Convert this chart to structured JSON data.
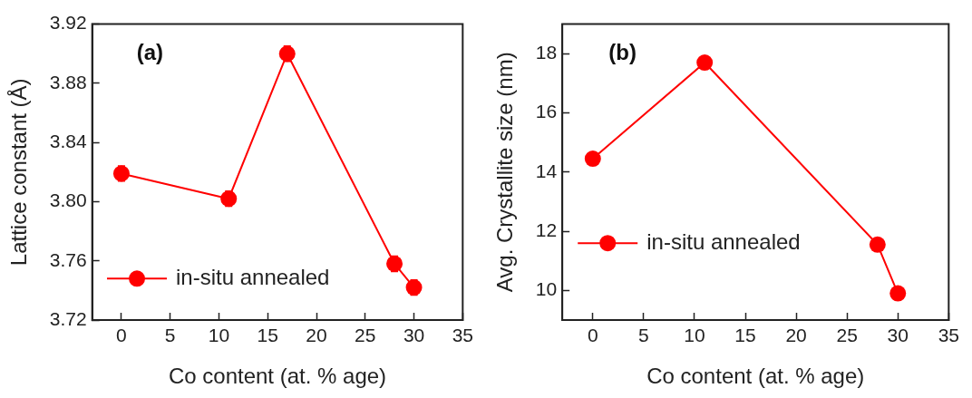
{
  "chart_data": [
    {
      "type": "line",
      "xlabel": "Co content (at. % age)",
      "ylabel": "Lattice constant (Å)",
      "annotations": [
        "(a)"
      ],
      "x": [
        0,
        11,
        17,
        28,
        30
      ],
      "series": [
        {
          "name": "in-situ annealed",
          "color": "#ff0000",
          "values": [
            3.819,
            3.802,
            3.9,
            3.758,
            3.742
          ],
          "errors": [
            0.005,
            0.005,
            0.005,
            0.005,
            0.005
          ]
        }
      ],
      "xlim": [
        -3,
        35
      ],
      "xticks": [
        0,
        5,
        10,
        15,
        20,
        25,
        30,
        35
      ],
      "ylim": [
        3.72,
        3.92
      ],
      "yticks": [
        {
          "value": 3.72,
          "label": "3.72"
        },
        {
          "value": 3.76,
          "label": "3.76"
        },
        {
          "value": 3.8,
          "label": "3.80"
        },
        {
          "value": 3.84,
          "label": "3.84"
        },
        {
          "value": 3.88,
          "label": "3.88"
        },
        {
          "value": 3.92,
          "label": "3.92"
        }
      ],
      "grid": false,
      "legend": "bottom left",
      "marker": "circle",
      "line_style": "solid"
    },
    {
      "type": "line",
      "xlabel": "Co content (at. % age)",
      "ylabel": "Avg. Crystallite size (nm)",
      "annotations": [
        "(b)"
      ],
      "x": [
        0,
        11,
        28,
        30
      ],
      "series": [
        {
          "name": "in-situ annealed",
          "color": "#ff0000",
          "values": [
            14.45,
            17.7,
            11.55,
            9.9
          ]
        }
      ],
      "xlim": [
        -3,
        35
      ],
      "xticks": [
        0,
        5,
        10,
        15,
        20,
        25,
        30,
        35
      ],
      "ylim": [
        9,
        19
      ],
      "yticks": [
        10,
        12,
        14,
        16,
        18
      ],
      "grid": false,
      "legend": "left",
      "marker": "circle",
      "line_style": "solid"
    }
  ]
}
